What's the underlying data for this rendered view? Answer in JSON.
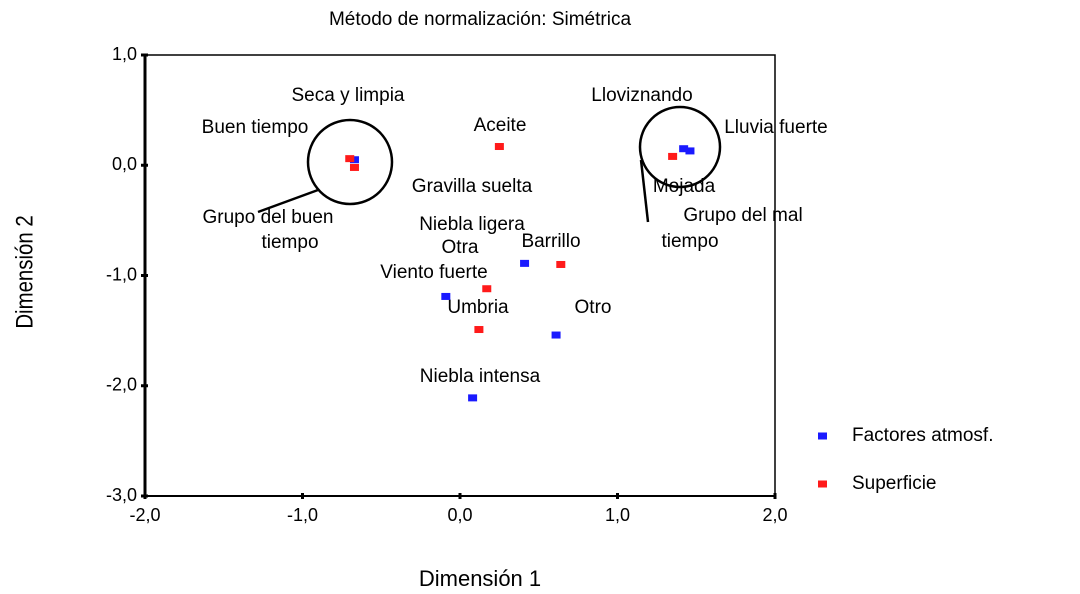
{
  "chart_data": {
    "type": "scatter",
    "title": "Método de normalización: Simétrica",
    "xlabel": "Dimensión 1",
    "ylabel": "Dimensión 2",
    "xlim": [
      -2,
      2
    ],
    "ylim": [
      -3,
      1
    ],
    "xticks": [
      {
        "value": -2,
        "label": "-2,0"
      },
      {
        "value": -1,
        "label": "-1,0"
      },
      {
        "value": 0,
        "label": "0,0"
      },
      {
        "value": 1,
        "label": "1,0"
      },
      {
        "value": 2,
        "label": "2,0"
      }
    ],
    "yticks": [
      {
        "value": 1,
        "label": "1,0"
      },
      {
        "value": 0,
        "label": "0,0"
      },
      {
        "value": -1,
        "label": "-1,0"
      },
      {
        "value": -2,
        "label": "-2,0"
      },
      {
        "value": -3,
        "label": "-3,0"
      }
    ],
    "legend": "right",
    "series": [
      {
        "name": "Factores atmosf.",
        "color": "#1a1aff",
        "x": [
          -0.67,
          1.42,
          1.46,
          0.41,
          -0.09,
          0.61,
          0.08
        ],
        "values": [
          0.05,
          0.15,
          0.13,
          -0.89,
          -1.19,
          -1.54,
          -2.11
        ]
      },
      {
        "name": "Superficie",
        "color": "#ff1a1a",
        "x": [
          -0.7,
          -0.67,
          0.25,
          1.35,
          0.64,
          0.17,
          0.12
        ],
        "values": [
          0.06,
          -0.02,
          0.17,
          0.08,
          -0.9,
          -1.12,
          -1.49
        ]
      }
    ],
    "annotations": [
      "Seca y limpia",
      "Buen tiempo",
      "Aceite",
      "Lloviznando",
      "Lluvia fuerte",
      "Gravilla suelta",
      "Mojada",
      "Grupo del buen",
      "tiempo",
      "Niebla ligera",
      "Otra",
      "Barrillo",
      "Viento fuerte",
      "Umbria",
      "Otro",
      "Niebla intensa",
      "Grupo del mal",
      "tiempo"
    ]
  }
}
